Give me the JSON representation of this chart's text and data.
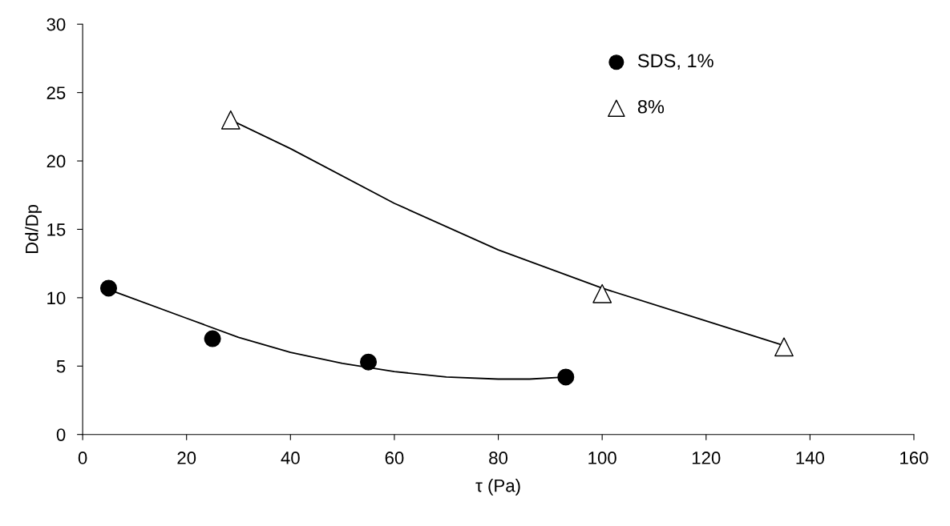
{
  "chart_data": {
    "type": "scatter",
    "xlabel": "τ (Pa)",
    "ylabel": "Dd/Dp",
    "xlim": [
      0,
      160
    ],
    "xticks": [
      0,
      20,
      40,
      60,
      80,
      100,
      120,
      140,
      160
    ],
    "ylim": [
      0,
      30
    ],
    "yticks": [
      0,
      5,
      10,
      15,
      20,
      25,
      30
    ],
    "grid": false,
    "legend": "top right",
    "series": [
      {
        "name": "SDS, 1%",
        "marker": "circle",
        "color": "#000000",
        "x": [
          5,
          25,
          55,
          93
        ],
        "values": [
          10.7,
          7.0,
          5.3,
          4.2
        ]
      },
      {
        "name": "8%",
        "marker": "triangle",
        "color": "#000000",
        "x": [
          28.5,
          100,
          135
        ],
        "values": [
          23.0,
          10.3,
          6.4
        ]
      },
      {
        "type": "line",
        "color": "#000000",
        "x": [
          5,
          20,
          30,
          40,
          50,
          60,
          70,
          80,
          86,
          93
        ],
        "values": [
          10.6,
          8.5,
          7.1,
          6.0,
          5.2,
          4.6,
          4.2,
          4.05,
          4.05,
          4.2
        ]
      },
      {
        "type": "line",
        "color": "#000000",
        "x": [
          28.5,
          40,
          60,
          80,
          100,
          120,
          135
        ],
        "values": [
          23.0,
          20.9,
          16.9,
          13.5,
          10.7,
          8.3,
          6.5
        ]
      }
    ]
  }
}
